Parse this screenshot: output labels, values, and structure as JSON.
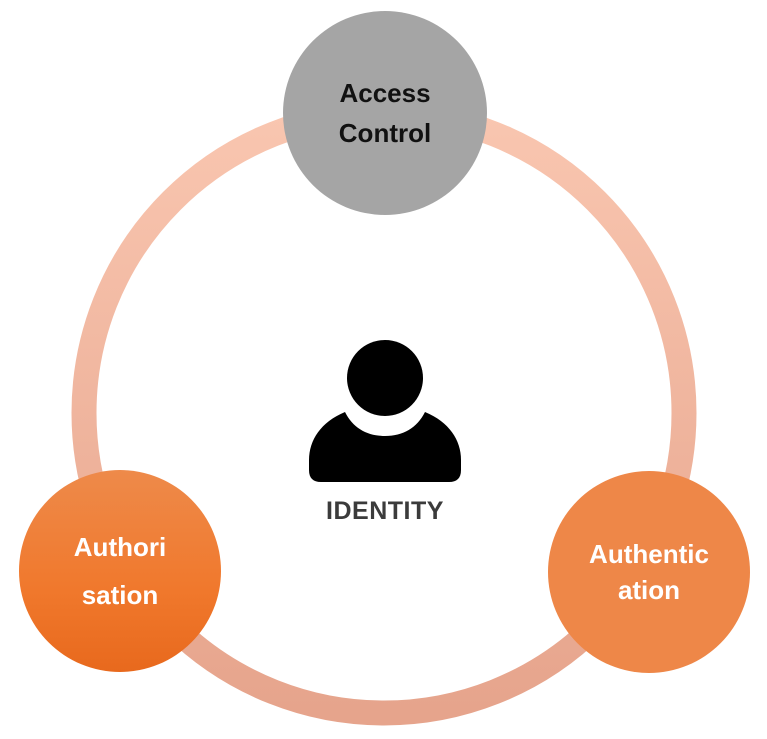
{
  "diagram": {
    "center": {
      "label": "IDENTITY",
      "icon": "person-icon"
    },
    "nodes": [
      {
        "id": "access-control",
        "lines": [
          "Access",
          "Control"
        ],
        "color": "#a5a5a5",
        "text_color": "#111111"
      },
      {
        "id": "authorisation",
        "lines": [
          "Authori",
          "sation"
        ],
        "color": "#f0782c",
        "text_color": "#ffffff"
      },
      {
        "id": "authentication",
        "lines": [
          "Authentic",
          "ation"
        ],
        "color": "#ee8748",
        "text_color": "#ffffff"
      }
    ],
    "ring_color_top": "#f8c3ad",
    "ring_color_bottom": "#e9a990"
  }
}
